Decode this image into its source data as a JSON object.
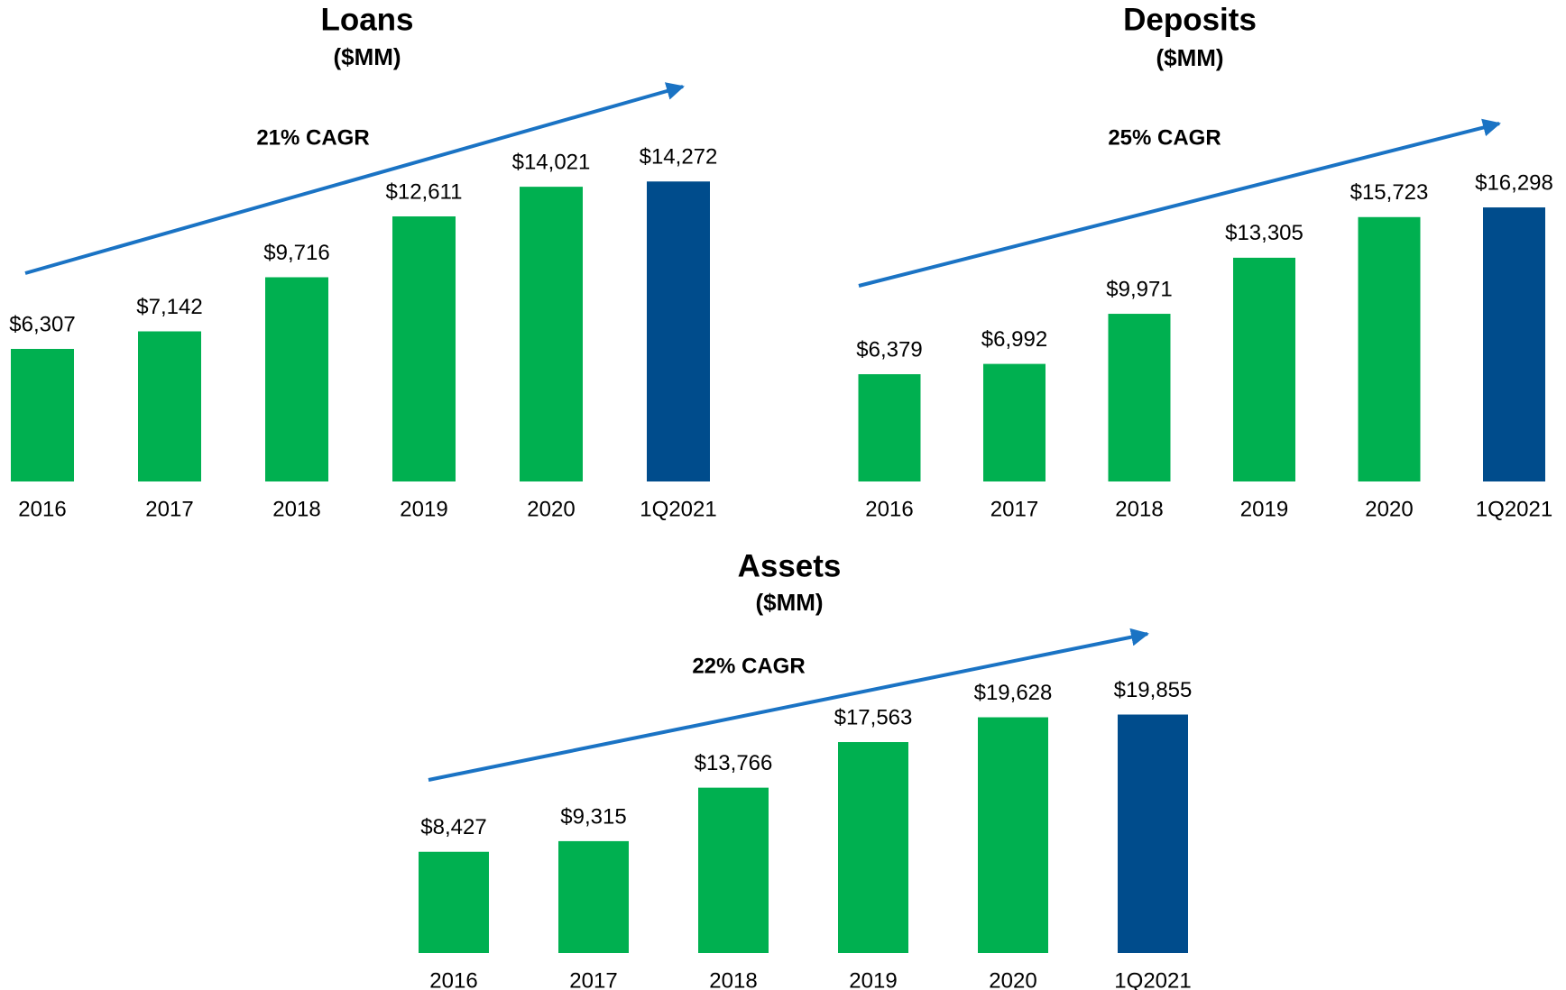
{
  "chart_data": [
    {
      "type": "bar",
      "title": "Loans",
      "subtitle": "($MM)",
      "annotation": "21% CAGR",
      "categories": [
        "2016",
        "2017",
        "2018",
        "2019",
        "2020",
        "1Q2021"
      ],
      "values": [
        6307,
        7142,
        9716,
        12611,
        14021,
        14272
      ],
      "value_labels": [
        "$6,307",
        "$7,142",
        "$9,716",
        "$12,611",
        "$14,021",
        "$14,272"
      ],
      "colors": [
        "#00b050",
        "#00b050",
        "#00b050",
        "#00b050",
        "#00b050",
        "#004c8c"
      ],
      "ylim": [
        0,
        16000
      ]
    },
    {
      "type": "bar",
      "title": "Deposits",
      "subtitle": "($MM)",
      "annotation": "25% CAGR",
      "categories": [
        "2016",
        "2017",
        "2018",
        "2019",
        "2020",
        "1Q2021"
      ],
      "values": [
        6379,
        6992,
        9971,
        13305,
        15723,
        16298
      ],
      "value_labels": [
        "$6,379",
        "$6,992",
        "$9,971",
        "$13,305",
        "$15,723",
        "$16,298"
      ],
      "colors": [
        "#00b050",
        "#00b050",
        "#00b050",
        "#00b050",
        "#00b050",
        "#004c8c"
      ],
      "ylim": [
        0,
        20000
      ]
    },
    {
      "type": "bar",
      "title": "Assets",
      "subtitle": "($MM)",
      "annotation": "22% CAGR",
      "categories": [
        "2016",
        "2017",
        "2018",
        "2019",
        "2020",
        "1Q2021"
      ],
      "values": [
        8427,
        9315,
        13766,
        17563,
        19628,
        19855
      ],
      "value_labels": [
        "$8,427",
        "$9,315",
        "$13,766",
        "$17,563",
        "$19,628",
        "$19,855"
      ],
      "colors": [
        "#00b050",
        "#00b050",
        "#00b050",
        "#00b050",
        "#00b050",
        "#004c8c"
      ],
      "ylim": [
        0,
        28000
      ]
    }
  ]
}
